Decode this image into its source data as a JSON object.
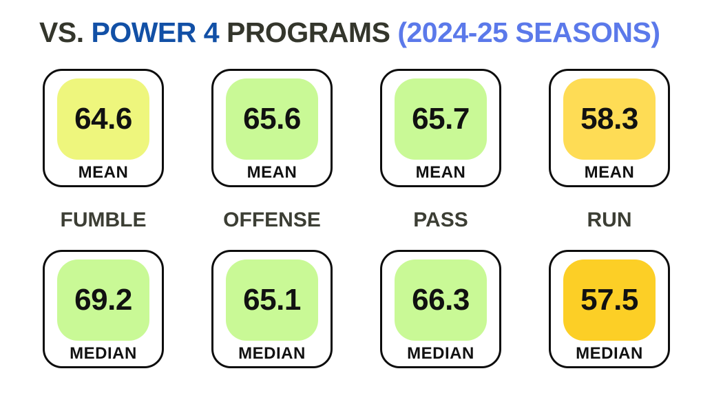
{
  "title": {
    "vs": "VS. ",
    "power4": "POWER 4 ",
    "programs": "PROGRAMS ",
    "seasons": "(2024-25 SEASONS)"
  },
  "colors": {
    "title_dark": "#34362c",
    "title_blue": "#1250a6",
    "title_light_blue": "#5b79ea",
    "category_label": "#3c3e34",
    "card_border": "#0d0d0d",
    "value_yellow_green": "#eef67d",
    "value_green": "#c9f996",
    "value_gold": "#fedc55",
    "value_deep_gold": "#fccf26"
  },
  "columns": [
    {
      "label": "FUMBLE",
      "mean": {
        "value": "64.6",
        "label": "MEAN",
        "color": "#eef67d"
      },
      "median": {
        "value": "69.2",
        "label": "MEDIAN",
        "color": "#c9f996"
      }
    },
    {
      "label": "OFFENSE",
      "mean": {
        "value": "65.6",
        "label": "MEAN",
        "color": "#c9f996"
      },
      "median": {
        "value": "65.1",
        "label": "MEDIAN",
        "color": "#c9f996"
      }
    },
    {
      "label": "PASS",
      "mean": {
        "value": "65.7",
        "label": "MEAN",
        "color": "#c9f996"
      },
      "median": {
        "value": "66.3",
        "label": "MEDIAN",
        "color": "#c9f996"
      }
    },
    {
      "label": "RUN",
      "mean": {
        "value": "58.3",
        "label": "MEAN",
        "color": "#fedc55"
      },
      "median": {
        "value": "57.5",
        "label": "MEDIAN",
        "color": "#fccf26"
      }
    }
  ],
  "chart_data": {
    "type": "table",
    "title": "VS. POWER 4 PROGRAMS (2024-25 SEASONS)",
    "categories": [
      "FUMBLE",
      "OFFENSE",
      "PASS",
      "RUN"
    ],
    "series": [
      {
        "name": "MEAN",
        "values": [
          64.6,
          65.6,
          65.7,
          58.3
        ]
      },
      {
        "name": "MEDIAN",
        "values": [
          69.2,
          65.1,
          66.3,
          57.5
        ]
      }
    ],
    "legend_position": "none",
    "grid": false
  }
}
